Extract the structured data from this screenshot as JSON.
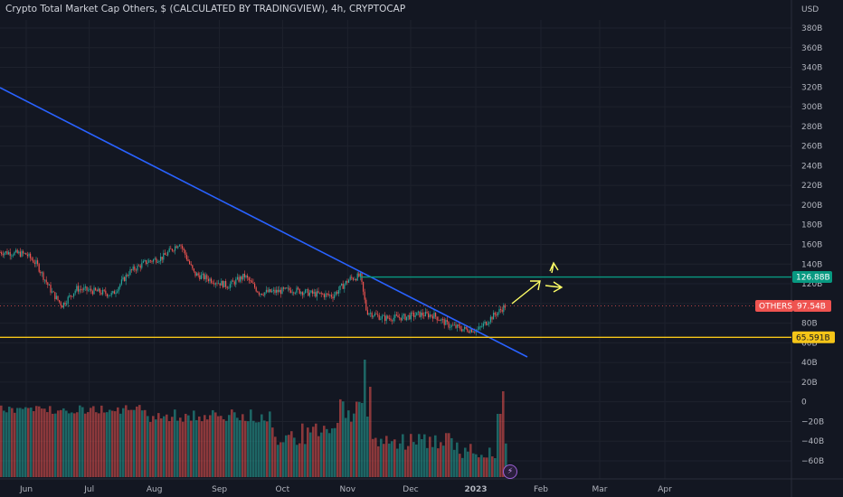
{
  "header": {
    "title": "Crypto Total Market Cap Others, $ (CALCULATED BY TRADINGVIEW), 4h, CRYPTOCAP"
  },
  "colors": {
    "background": "#131722",
    "grid": "#1e222d",
    "up_candle": "#26a69a",
    "down_candle": "#ef5350",
    "trendline": "#2962ff",
    "resistance_line": "#089981",
    "support_line": "#f5c518",
    "projection_arrow": "#ffff66"
  },
  "price_axis": {
    "currency": "USD",
    "ticks": [
      "380B",
      "360B",
      "340B",
      "320B",
      "300B",
      "280B",
      "260B",
      "240B",
      "220B",
      "200B",
      "180B",
      "160B",
      "140B",
      "120B",
      "100B",
      "80B",
      "60B",
      "40B",
      "20B",
      "0",
      "−20B",
      "−40B",
      "−60B"
    ]
  },
  "time_axis": {
    "ticks": [
      "Jun",
      "Jul",
      "Aug",
      "Sep",
      "Oct",
      "Nov",
      "Dec",
      "2023",
      "Feb",
      "Mar",
      "Apr"
    ]
  },
  "badges": {
    "resistance": "126.88B",
    "symbol": "OTHERS",
    "current": "97.54B",
    "support": "65.591B"
  },
  "chart_data": {
    "type": "line",
    "title": "Crypto Total Market Cap Others, $ (CALCULATED BY TRADINGVIEW), 4h, CRYPTOCAP",
    "x": [
      "Jun",
      "Jul",
      "Aug",
      "Sep",
      "Oct",
      "Nov",
      "Dec",
      "2023",
      "Feb",
      "Mar",
      "Apr"
    ],
    "ylim": [
      -65,
      395
    ],
    "series": [
      {
        "name": "OTHERS",
        "points": [
          [
            "2022-05-22",
            152
          ],
          [
            "2022-06-01",
            150
          ],
          [
            "2022-06-06",
            140
          ],
          [
            "2022-06-13",
            112
          ],
          [
            "2022-06-18",
            98
          ],
          [
            "2022-06-25",
            115
          ],
          [
            "2022-07-05",
            112
          ],
          [
            "2022-07-12",
            109
          ],
          [
            "2022-07-20",
            132
          ],
          [
            "2022-07-28",
            142
          ],
          [
            "2022-08-05",
            147
          ],
          [
            "2022-08-13",
            162
          ],
          [
            "2022-08-20",
            130
          ],
          [
            "2022-08-28",
            124
          ],
          [
            "2022-09-05",
            118
          ],
          [
            "2022-09-13",
            128
          ],
          [
            "2022-09-20",
            111
          ],
          [
            "2022-09-28",
            112
          ],
          [
            "2022-10-06",
            114
          ],
          [
            "2022-10-15",
            110
          ],
          [
            "2022-10-25",
            108
          ],
          [
            "2022-11-02",
            125
          ],
          [
            "2022-11-07",
            128
          ],
          [
            "2022-11-10",
            92
          ],
          [
            "2022-11-18",
            85
          ],
          [
            "2022-11-28",
            86
          ],
          [
            "2022-12-05",
            89
          ],
          [
            "2022-12-12",
            88
          ],
          [
            "2022-12-19",
            78
          ],
          [
            "2022-12-26",
            74
          ],
          [
            "2023-01-02",
            73
          ],
          [
            "2023-01-08",
            85
          ],
          [
            "2023-01-12",
            92
          ],
          [
            "2023-01-15",
            97.54
          ]
        ]
      }
    ],
    "volume": {
      "ylim": [
        -70,
        50
      ],
      "note": "oscillator-style volume pane"
    },
    "annotations": {
      "resistance_level": 126.88,
      "support_level": 65.591,
      "current_price": 97.54
    },
    "grid": true
  }
}
